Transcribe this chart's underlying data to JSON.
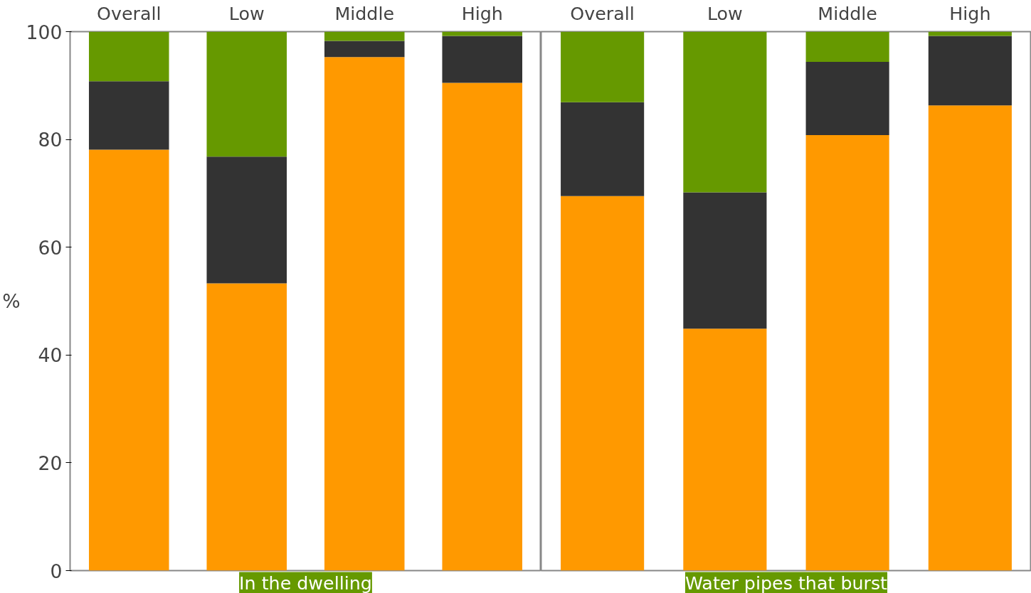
{
  "chart_data": [
    {
      "type": "bar",
      "stacked": true,
      "xlabel": "In the dwelling",
      "ylabel": "%",
      "categories": [
        "Overall",
        "Low",
        "Middle",
        "High"
      ],
      "ylim": [
        0,
        100
      ],
      "yticks": [
        0,
        20,
        40,
        60,
        80,
        100
      ],
      "grid": false,
      "series": [
        {
          "color": "#ff9900",
          "values": [
            78.1,
            53.3,
            95.3,
            90.5
          ]
        },
        {
          "color": "#333333",
          "values": [
            12.7,
            23.5,
            3.0,
            8.7
          ]
        },
        {
          "color": "#669900",
          "values": [
            9.2,
            23.2,
            1.7,
            0.8
          ]
        }
      ]
    },
    {
      "type": "bar",
      "stacked": true,
      "xlabel": "Water pipes that burst",
      "categories": [
        "Overall",
        "Low",
        "Middle",
        "High"
      ],
      "ylim": [
        0,
        100
      ],
      "yticks": [
        0,
        20,
        40,
        60,
        80,
        100
      ],
      "grid": false,
      "tick_labels": "x",
      "series": [
        {
          "color": "#ff9900",
          "values": [
            69.5,
            44.9,
            80.8,
            86.3
          ]
        },
        {
          "color": "#333333",
          "values": [
            17.4,
            25.3,
            13.6,
            12.9
          ]
        },
        {
          "color": "#669900",
          "values": [
            13.1,
            29.8,
            5.6,
            0.8
          ]
        }
      ]
    }
  ]
}
